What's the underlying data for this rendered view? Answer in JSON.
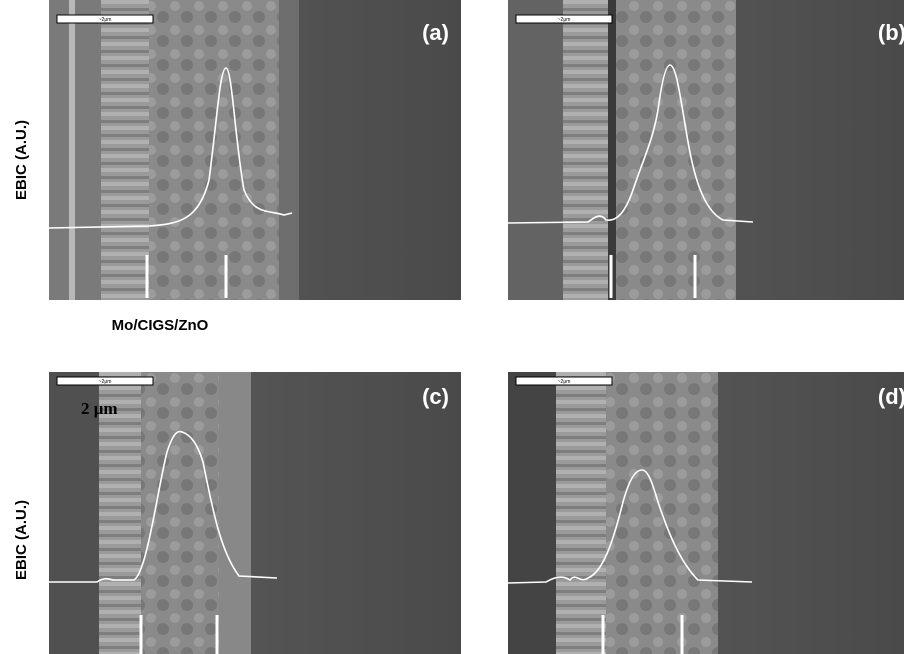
{
  "panels": [
    {
      "label": "(a)",
      "scale_bar": "~2μm"
    },
    {
      "label": "(b)",
      "scale_bar": "~2μm"
    },
    {
      "label": "(c)",
      "scale_bar": "~2μm"
    },
    {
      "label": "(d)",
      "scale_bar": "~2μm"
    }
  ],
  "y_axis_labels": [
    "EBIC (A.U.)",
    "EBIC (A.U.)"
  ],
  "caption": "Mo/CIGS/ZnO",
  "scale_annotation": "2 μm"
}
